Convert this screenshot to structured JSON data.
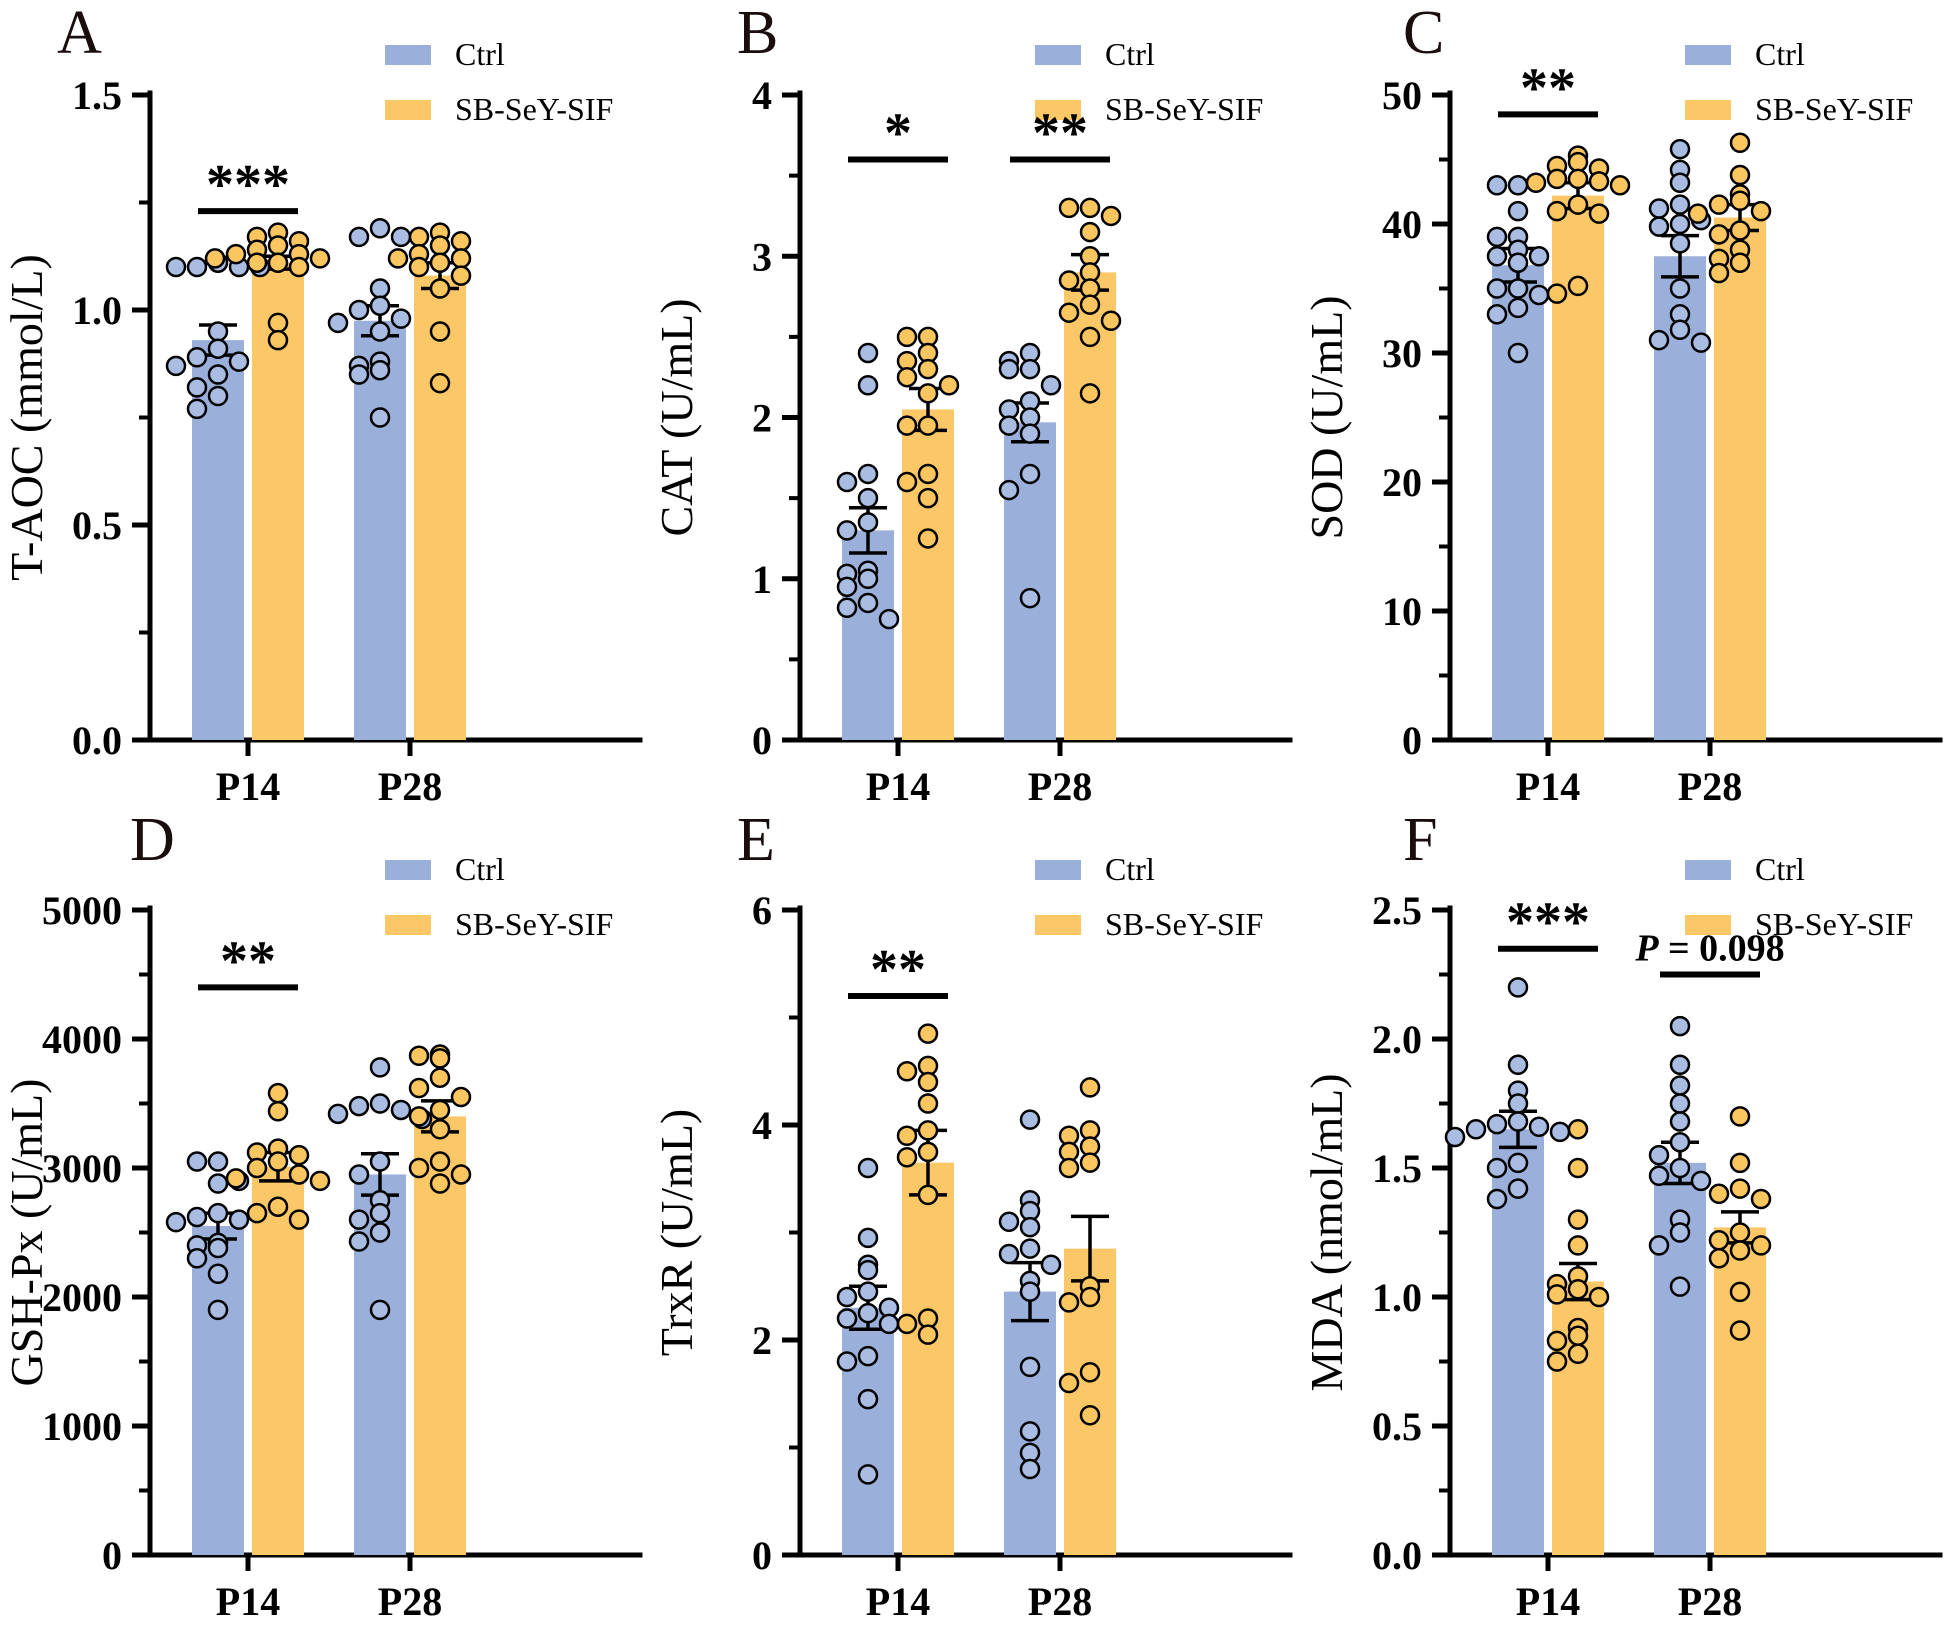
{
  "figure": {
    "legend": {
      "ctrl": "Ctrl",
      "treat": "SB-SeY-SIF"
    },
    "colors": {
      "ctrl_bar": "#9BAFDB",
      "treat_bar": "#FCC767",
      "ctrl_point": "#A9BCE2",
      "treat_point": "#FBC65F",
      "axis": "#000000"
    },
    "x_categories": [
      "P14",
      "P28"
    ]
  },
  "chart_data": [
    {
      "panel": "A",
      "type": "bar",
      "ylabel": "T-AOC (mmol/L)",
      "ylim": [
        0,
        1.5
      ],
      "yticks": [
        0,
        0.5,
        1,
        1.5
      ],
      "ytick_labels": [
        "0.0",
        "0.5",
        "1.0",
        "1.5"
      ],
      "minor_step": 0.25,
      "categories": [
        "P14",
        "P28"
      ],
      "series": [
        {
          "name": "Ctrl",
          "means": [
            0.93,
            0.975
          ],
          "sem": [
            0.035,
            0.035
          ],
          "points": [
            [
              1.11,
              1.1,
              1.1,
              1.1,
              1.1,
              0.95,
              0.91,
              0.89,
              0.88,
              0.87,
              0.85,
              0.82,
              0.8,
              0.77
            ],
            [
              1.19,
              1.17,
              1.17,
              1.05,
              1.01,
              1.0,
              0.98,
              0.97,
              0.95,
              0.88,
              0.87,
              0.86,
              0.85,
              0.75
            ]
          ]
        },
        {
          "name": "SB-SeY-SIF",
          "means": [
            1.11,
            1.08
          ],
          "sem": [
            0.015,
            0.03
          ],
          "points": [
            [
              1.18,
              1.17,
              1.16,
              1.15,
              1.14,
              1.13,
              1.13,
              1.12,
              1.12,
              1.11,
              1.11,
              1.1,
              0.97,
              0.93
            ],
            [
              1.18,
              1.17,
              1.16,
              1.15,
              1.13,
              1.12,
              1.12,
              1.11,
              1.1,
              1.08,
              1.05,
              0.95,
              0.83
            ]
          ]
        }
      ],
      "significance": [
        {
          "group": 0,
          "label": "***",
          "line_y": 1.23
        }
      ]
    },
    {
      "panel": "B",
      "type": "bar",
      "ylabel": "CAT (U/mL)",
      "ylim": [
        0,
        4
      ],
      "yticks": [
        0,
        1,
        2,
        3,
        4
      ],
      "ytick_labels": [
        "0",
        "1",
        "2",
        "3",
        "4"
      ],
      "minor_step": 0.5,
      "categories": [
        "P14",
        "P28"
      ],
      "series": [
        {
          "name": "Ctrl",
          "means": [
            1.3,
            1.97
          ],
          "sem": [
            0.14,
            0.12
          ],
          "points": [
            [
              2.4,
              2.2,
              1.65,
              1.6,
              1.5,
              1.35,
              1.3,
              1.05,
              1.03,
              1.0,
              0.95,
              0.85,
              0.82,
              0.75
            ],
            [
              2.4,
              2.35,
              2.3,
              2.3,
              2.2,
              2.1,
              2.05,
              2.0,
              1.95,
              1.9,
              1.65,
              1.55,
              0.88
            ]
          ]
        },
        {
          "name": "SB-SeY-SIF",
          "means": [
            2.05,
            2.9
          ],
          "sem": [
            0.13,
            0.11
          ],
          "points": [
            [
              2.5,
              2.5,
              2.4,
              2.35,
              2.3,
              2.25,
              2.2,
              2.15,
              1.95,
              1.95,
              1.65,
              1.6,
              1.5,
              1.25
            ],
            [
              3.3,
              3.3,
              3.25,
              3.15,
              3.0,
              2.9,
              2.85,
              2.8,
              2.7,
              2.65,
              2.6,
              2.5,
              2.15
            ]
          ]
        }
      ],
      "significance": [
        {
          "group": 0,
          "label": "*",
          "line_y": 3.6
        },
        {
          "group": 1,
          "label": "**",
          "line_y": 3.6
        }
      ]
    },
    {
      "panel": "C",
      "type": "bar",
      "ylabel": "SOD (U/mL)",
      "ylim": [
        0,
        50
      ],
      "yticks": [
        0,
        10,
        20,
        30,
        40,
        50
      ],
      "ytick_labels": [
        "0",
        "10",
        "20",
        "30",
        "40",
        "50"
      ],
      "minor_step": 5,
      "categories": [
        "P14",
        "P28"
      ],
      "series": [
        {
          "name": "Ctrl",
          "means": [
            36.8,
            37.5
          ],
          "sem": [
            1.3,
            1.6
          ],
          "points": [
            [
              43,
              43,
              41,
              39,
              39,
              38,
              37.5,
              37.5,
              37,
              35,
              35,
              34.5,
              33.5,
              33,
              30
            ],
            [
              45.8,
              44.2,
              43.2,
              41.5,
              41.2,
              40.3,
              40,
              39.8,
              38.5,
              35,
              33,
              31.8,
              31,
              30.8
            ]
          ]
        },
        {
          "name": "SB-SeY-SIF",
          "means": [
            42.2,
            40.5
          ],
          "sem": [
            1.0,
            1.0
          ],
          "points": [
            [
              45.3,
              44.8,
              44.5,
              44.3,
              43.5,
              43.5,
              43.3,
              43.2,
              43,
              41.5,
              41,
              40.8,
              35.2,
              34.6
            ],
            [
              46.3,
              43.8,
              42.3,
              41.8,
              41.5,
              41,
              40.8,
              39.5,
              39.2,
              38,
              37.3,
              37,
              36.2
            ]
          ]
        }
      ],
      "significance": [
        {
          "group": 0,
          "label": "**",
          "line_y": 48.5
        }
      ]
    },
    {
      "panel": "D",
      "type": "bar",
      "ylabel": "GSH-Px (U/mL)",
      "ylim": [
        0,
        5000
      ],
      "yticks": [
        0,
        1000,
        2000,
        3000,
        4000,
        5000
      ],
      "ytick_labels": [
        "0",
        "1000",
        "2000",
        "3000",
        "4000",
        "5000"
      ],
      "minor_step": 500,
      "categories": [
        "P14",
        "P28"
      ],
      "series": [
        {
          "name": "Ctrl",
          "means": [
            2550,
            2950
          ],
          "sem": [
            100,
            160
          ],
          "points": [
            [
              3050,
              3050,
              2900,
              2880,
              2650,
              2620,
              2600,
              2580,
              2420,
              2400,
              2380,
              2300,
              2180,
              1900
            ],
            [
              3780,
              3500,
              3480,
              3450,
              3420,
              3380,
              3050,
              2950,
              2750,
              2650,
              2600,
              2500,
              2430,
              1900
            ]
          ]
        },
        {
          "name": "SB-SeY-SIF",
          "means": [
            3010,
            3400
          ],
          "sem": [
            110,
            120
          ],
          "points": [
            [
              3580,
              3440,
              3150,
              3120,
              3100,
              3050,
              3000,
              2950,
              2920,
              2900,
              2700,
              2650,
              2600
            ],
            [
              3880,
              3870,
              3850,
              3700,
              3620,
              3550,
              3450,
              3400,
              3300,
              3050,
              3000,
              2950,
              2880
            ]
          ]
        }
      ],
      "significance": [
        {
          "group": 0,
          "label": "**",
          "line_y": 4400
        }
      ]
    },
    {
      "panel": "E",
      "type": "bar",
      "ylabel": "TrxR (U/mL)",
      "ylim": [
        0,
        6
      ],
      "yticks": [
        0,
        2,
        4,
        6
      ],
      "ytick_labels": [
        "0",
        "2",
        "4",
        "6"
      ],
      "minor_step": 1,
      "categories": [
        "P14",
        "P28"
      ],
      "series": [
        {
          "name": "Ctrl",
          "means": [
            2.3,
            2.45
          ],
          "sem": [
            0.2,
            0.27
          ],
          "points": [
            [
              3.6,
              2.95,
              2.7,
              2.65,
              2.45,
              2.4,
              2.3,
              2.25,
              2.2,
              2.15,
              1.85,
              1.8,
              1.45,
              0.75
            ],
            [
              4.05,
              3.3,
              3.2,
              3.1,
              3.05,
              2.85,
              2.8,
              2.7,
              2.55,
              2.45,
              1.75,
              1.15,
              0.95,
              0.8
            ]
          ]
        },
        {
          "name": "SB-SeY-SIF",
          "means": [
            3.65,
            2.85
          ],
          "sem": [
            0.3,
            0.3
          ],
          "points": [
            [
              4.85,
              4.55,
              4.5,
              4.4,
              4.2,
              3.95,
              3.9,
              3.75,
              3.7,
              3.35,
              2.2,
              2.15,
              2.05
            ],
            [
              4.35,
              3.95,
              3.9,
              3.8,
              3.75,
              3.65,
              3.6,
              2.5,
              2.4,
              2.35,
              1.7,
              1.6,
              1.3
            ]
          ]
        }
      ],
      "significance": [
        {
          "group": 0,
          "label": "**",
          "line_y": 5.2
        }
      ]
    },
    {
      "panel": "F",
      "type": "bar",
      "ylabel": "MDA (nmol/mL)",
      "ylim": [
        0,
        2.5
      ],
      "yticks": [
        0,
        0.5,
        1,
        1.5,
        2,
        2.5
      ],
      "ytick_labels": [
        "0.0",
        "0.5",
        "1.0",
        "1.5",
        "2.0",
        "2.5"
      ],
      "minor_step": 0.25,
      "categories": [
        "P14",
        "P28"
      ],
      "series": [
        {
          "name": "Ctrl",
          "means": [
            1.65,
            1.52
          ],
          "sem": [
            0.07,
            0.08
          ],
          "points": [
            [
              2.2,
              1.9,
              1.8,
              1.75,
              1.68,
              1.67,
              1.66,
              1.65,
              1.64,
              1.62,
              1.52,
              1.5,
              1.42,
              1.38
            ],
            [
              2.05,
              1.9,
              1.82,
              1.75,
              1.68,
              1.6,
              1.55,
              1.5,
              1.47,
              1.45,
              1.3,
              1.25,
              1.2,
              1.04
            ]
          ]
        },
        {
          "name": "SB-SeY-SIF",
          "means": [
            1.06,
            1.27
          ],
          "sem": [
            0.07,
            0.06
          ],
          "points": [
            [
              1.65,
              1.5,
              1.3,
              1.2,
              1.08,
              1.05,
              1.03,
              1.01,
              1.0,
              0.88,
              0.85,
              0.83,
              0.78,
              0.75
            ],
            [
              1.7,
              1.52,
              1.42,
              1.4,
              1.38,
              1.25,
              1.22,
              1.2,
              1.18,
              1.15,
              1.02,
              0.87
            ]
          ]
        }
      ],
      "significance": [
        {
          "group": 0,
          "label": "***",
          "line_y": 2.35
        },
        {
          "group": 1,
          "label": "P = 0.098",
          "line_y": 2.25
        }
      ]
    }
  ]
}
